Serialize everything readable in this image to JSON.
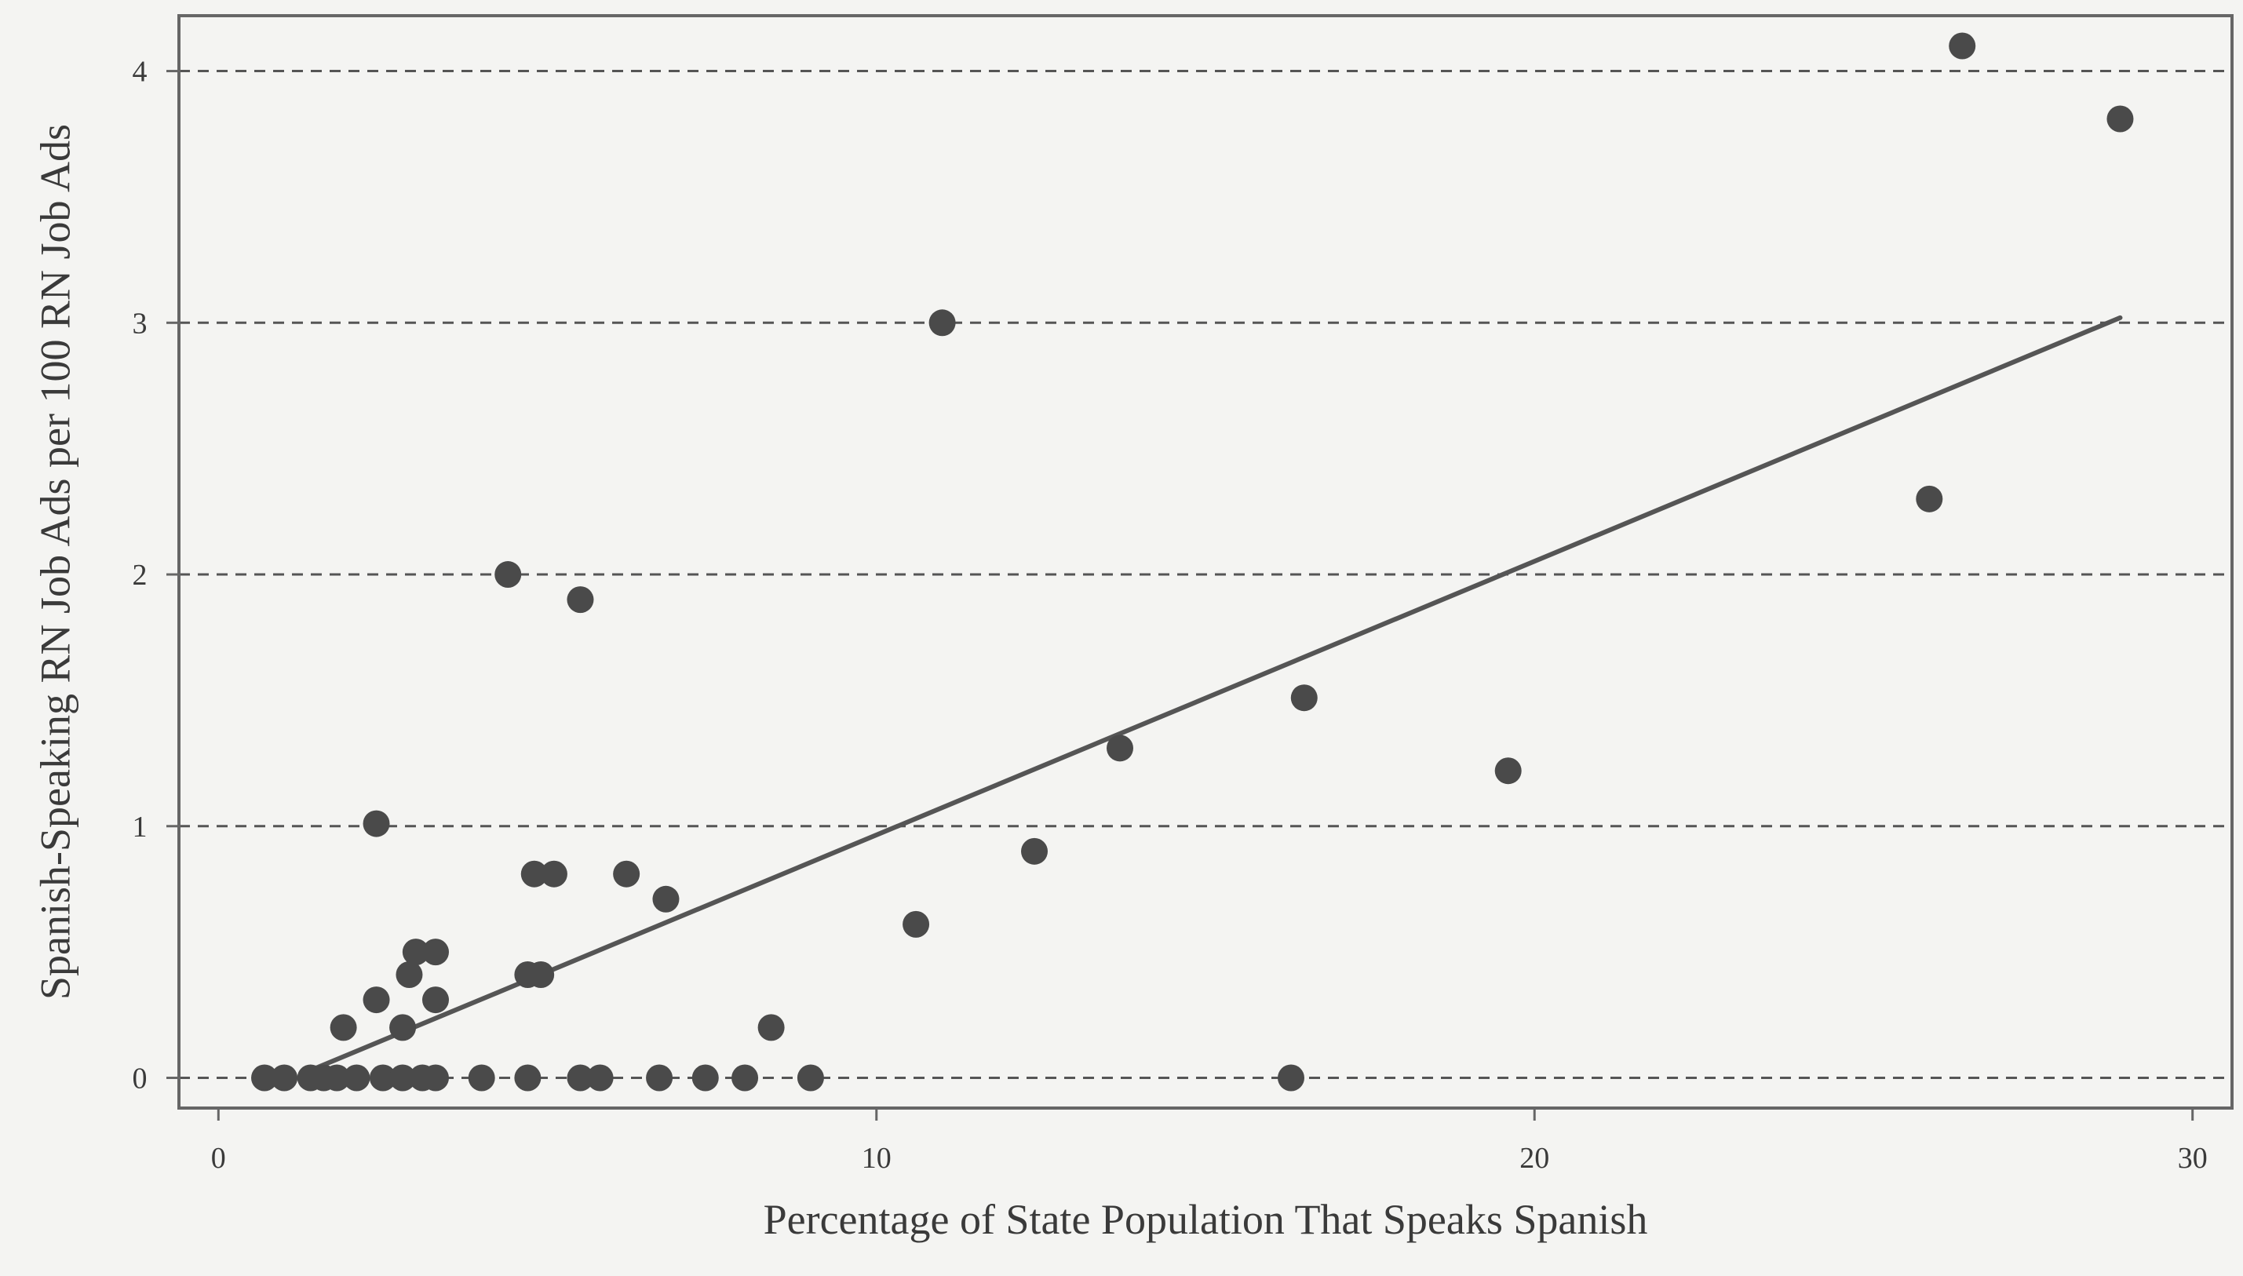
{
  "chart_data": {
    "type": "scatter",
    "title": "",
    "xlabel": "Percentage of State Population That Speaks Spanish",
    "ylabel": "Spanish-Speaking RN Job Ads per 100 RN Job Ads",
    "xlim": [
      -0.6,
      30.6
    ],
    "ylim": [
      -0.12,
      4.22
    ],
    "x_ticks": [
      0,
      10,
      20,
      30
    ],
    "y_ticks": [
      0,
      1,
      2,
      3,
      4
    ],
    "grid": "horizontal-dashed",
    "points": [
      {
        "x": 0.7,
        "y": 0
      },
      {
        "x": 1.0,
        "y": 0
      },
      {
        "x": 1.4,
        "y": 0
      },
      {
        "x": 1.6,
        "y": 0
      },
      {
        "x": 1.8,
        "y": 0
      },
      {
        "x": 2.1,
        "y": 0
      },
      {
        "x": 2.5,
        "y": 0
      },
      {
        "x": 2.8,
        "y": 0
      },
      {
        "x": 3.1,
        "y": 0
      },
      {
        "x": 3.3,
        "y": 0
      },
      {
        "x": 4.0,
        "y": 0
      },
      {
        "x": 4.7,
        "y": 0
      },
      {
        "x": 5.5,
        "y": 0
      },
      {
        "x": 5.8,
        "y": 0
      },
      {
        "x": 6.7,
        "y": 0
      },
      {
        "x": 7.4,
        "y": 0
      },
      {
        "x": 8.0,
        "y": 0
      },
      {
        "x": 9.0,
        "y": 0
      },
      {
        "x": 16.3,
        "y": 0
      },
      {
        "x": 1.9,
        "y": 0.2
      },
      {
        "x": 2.8,
        "y": 0.2
      },
      {
        "x": 8.4,
        "y": 0.2
      },
      {
        "x": 2.4,
        "y": 0.31
      },
      {
        "x": 3.3,
        "y": 0.31
      },
      {
        "x": 2.9,
        "y": 0.41
      },
      {
        "x": 4.7,
        "y": 0.41
      },
      {
        "x": 4.9,
        "y": 0.41
      },
      {
        "x": 3.0,
        "y": 0.5
      },
      {
        "x": 3.3,
        "y": 0.5
      },
      {
        "x": 10.6,
        "y": 0.61
      },
      {
        "x": 6.8,
        "y": 0.71
      },
      {
        "x": 4.8,
        "y": 0.81
      },
      {
        "x": 5.1,
        "y": 0.81
      },
      {
        "x": 6.2,
        "y": 0.81
      },
      {
        "x": 12.4,
        "y": 0.9
      },
      {
        "x": 2.4,
        "y": 1.01
      },
      {
        "x": 19.6,
        "y": 1.22
      },
      {
        "x": 13.7,
        "y": 1.31
      },
      {
        "x": 16.5,
        "y": 1.51
      },
      {
        "x": 5.5,
        "y": 1.9
      },
      {
        "x": 4.4,
        "y": 2.0
      },
      {
        "x": 26.0,
        "y": 2.3
      },
      {
        "x": 11.0,
        "y": 3.0
      },
      {
        "x": 28.9,
        "y": 3.81
      },
      {
        "x": 26.5,
        "y": 4.1
      }
    ],
    "fit_line": {
      "x": [
        1.4,
        28.9
      ],
      "y": [
        0.03,
        3.02
      ]
    },
    "colors": {
      "background": "#f4f4f2",
      "point": "#4a4a4a",
      "fit_line": "#555555",
      "axis": "#666666",
      "grid": "#555555"
    }
  }
}
